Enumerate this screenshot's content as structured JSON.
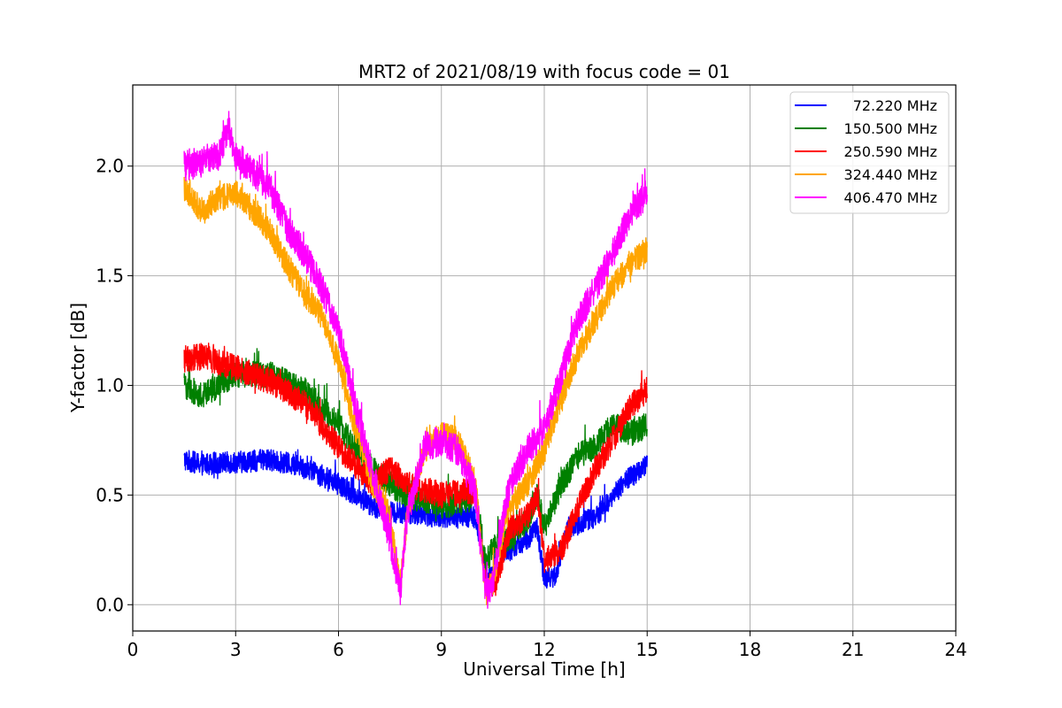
{
  "chart_data": {
    "type": "line",
    "title": "MRT2 of 2021/08/19 with focus code = 01",
    "xlabel": "Universal Time [h]",
    "ylabel": "Y-factor [dB]",
    "xlim": [
      0,
      24
    ],
    "ylim": [
      -0.12,
      2.37
    ],
    "xticks": [
      0,
      3,
      6,
      9,
      12,
      15,
      18,
      21,
      24
    ],
    "xtick_labels": [
      "0",
      "3",
      "6",
      "9",
      "12",
      "15",
      "18",
      "21",
      "24"
    ],
    "yticks": [
      0.0,
      0.5,
      1.0,
      1.5,
      2.0
    ],
    "ytick_labels": [
      "0.0",
      "0.5",
      "1.0",
      "1.5",
      "2.0"
    ],
    "grid": true,
    "legend_position": "top-right",
    "series": [
      {
        "name": "72.220 MHz",
        "color": "#0000ff",
        "noise": 0.05,
        "points": [
          [
            1.5,
            0.66
          ],
          [
            2.0,
            0.64
          ],
          [
            3.0,
            0.65
          ],
          [
            4.0,
            0.66
          ],
          [
            5.0,
            0.63
          ],
          [
            6.0,
            0.55
          ],
          [
            7.0,
            0.45
          ],
          [
            7.5,
            0.42
          ],
          [
            8.0,
            0.42
          ],
          [
            9.0,
            0.4
          ],
          [
            10.0,
            0.4
          ],
          [
            10.3,
            0.15
          ],
          [
            10.5,
            0.12
          ],
          [
            10.6,
            0.25
          ],
          [
            11.0,
            0.25
          ],
          [
            11.5,
            0.3
          ],
          [
            11.8,
            0.35
          ],
          [
            12.0,
            0.12
          ],
          [
            12.3,
            0.12
          ],
          [
            12.7,
            0.35
          ],
          [
            13.5,
            0.4
          ],
          [
            14.0,
            0.5
          ],
          [
            14.5,
            0.58
          ],
          [
            15.0,
            0.64
          ]
        ]
      },
      {
        "name": "150.500 MHz",
        "color": "#008000",
        "noise": 0.06,
        "points": [
          [
            1.5,
            1.0
          ],
          [
            2.0,
            0.95
          ],
          [
            3.0,
            1.05
          ],
          [
            4.0,
            1.05
          ],
          [
            5.0,
            0.98
          ],
          [
            6.0,
            0.82
          ],
          [
            7.0,
            0.62
          ],
          [
            7.5,
            0.55
          ],
          [
            8.0,
            0.5
          ],
          [
            9.0,
            0.45
          ],
          [
            10.0,
            0.48
          ],
          [
            10.3,
            0.2
          ],
          [
            10.6,
            0.28
          ],
          [
            11.0,
            0.3
          ],
          [
            11.5,
            0.38
          ],
          [
            11.8,
            0.5
          ],
          [
            12.0,
            0.35
          ],
          [
            12.5,
            0.55
          ],
          [
            13.0,
            0.68
          ],
          [
            13.5,
            0.72
          ],
          [
            14.0,
            0.82
          ],
          [
            14.5,
            0.78
          ],
          [
            15.0,
            0.82
          ]
        ]
      },
      {
        "name": "250.590 MHz",
        "color": "#ff0000",
        "noise": 0.06,
        "points": [
          [
            1.5,
            1.12
          ],
          [
            2.0,
            1.13
          ],
          [
            3.0,
            1.08
          ],
          [
            4.0,
            1.02
          ],
          [
            5.0,
            0.92
          ],
          [
            6.0,
            0.72
          ],
          [
            7.0,
            0.55
          ],
          [
            7.5,
            0.62
          ],
          [
            8.0,
            0.55
          ],
          [
            9.0,
            0.5
          ],
          [
            10.0,
            0.52
          ],
          [
            10.3,
            0.08
          ],
          [
            10.6,
            0.1
          ],
          [
            11.0,
            0.35
          ],
          [
            11.5,
            0.4
          ],
          [
            11.8,
            0.5
          ],
          [
            12.0,
            0.2
          ],
          [
            12.5,
            0.25
          ],
          [
            13.0,
            0.45
          ],
          [
            13.5,
            0.62
          ],
          [
            14.0,
            0.75
          ],
          [
            14.5,
            0.9
          ],
          [
            15.0,
            0.98
          ]
        ]
      },
      {
        "name": "324.440 MHz",
        "color": "#ffa500",
        "noise": 0.06,
        "points": [
          [
            1.5,
            1.9
          ],
          [
            2.0,
            1.8
          ],
          [
            2.5,
            1.85
          ],
          [
            3.0,
            1.88
          ],
          [
            3.5,
            1.8
          ],
          [
            4.0,
            1.7
          ],
          [
            4.5,
            1.55
          ],
          [
            5.0,
            1.42
          ],
          [
            5.5,
            1.32
          ],
          [
            6.0,
            1.1
          ],
          [
            6.5,
            0.8
          ],
          [
            7.0,
            0.55
          ],
          [
            7.5,
            0.4
          ],
          [
            7.8,
            0.08
          ],
          [
            8.0,
            0.4
          ],
          [
            8.5,
            0.7
          ],
          [
            9.0,
            0.78
          ],
          [
            9.5,
            0.75
          ],
          [
            10.0,
            0.55
          ],
          [
            10.3,
            0.05
          ],
          [
            10.5,
            0.1
          ],
          [
            10.8,
            0.35
          ],
          [
            11.0,
            0.45
          ],
          [
            11.5,
            0.55
          ],
          [
            12.0,
            0.7
          ],
          [
            12.5,
            0.95
          ],
          [
            13.0,
            1.15
          ],
          [
            13.5,
            1.3
          ],
          [
            14.0,
            1.45
          ],
          [
            14.5,
            1.55
          ],
          [
            15.0,
            1.62
          ]
        ]
      },
      {
        "name": "406.470 MHz",
        "color": "#ff00ff",
        "noise": 0.07,
        "points": [
          [
            1.5,
            2.0
          ],
          [
            2.0,
            2.02
          ],
          [
            2.5,
            2.05
          ],
          [
            2.8,
            2.18
          ],
          [
            3.0,
            2.05
          ],
          [
            4.0,
            1.9
          ],
          [
            4.5,
            1.72
          ],
          [
            5.0,
            1.6
          ],
          [
            5.5,
            1.45
          ],
          [
            6.0,
            1.25
          ],
          [
            6.5,
            0.9
          ],
          [
            7.0,
            0.6
          ],
          [
            7.5,
            0.3
          ],
          [
            7.8,
            0.05
          ],
          [
            8.0,
            0.4
          ],
          [
            8.5,
            0.72
          ],
          [
            9.0,
            0.75
          ],
          [
            9.5,
            0.7
          ],
          [
            10.0,
            0.5
          ],
          [
            10.3,
            0.03
          ],
          [
            10.5,
            0.1
          ],
          [
            10.8,
            0.4
          ],
          [
            11.0,
            0.55
          ],
          [
            11.5,
            0.7
          ],
          [
            12.0,
            0.8
          ],
          [
            12.5,
            1.05
          ],
          [
            13.0,
            1.3
          ],
          [
            13.5,
            1.45
          ],
          [
            14.0,
            1.6
          ],
          [
            14.5,
            1.78
          ],
          [
            15.0,
            1.88
          ]
        ]
      }
    ]
  }
}
